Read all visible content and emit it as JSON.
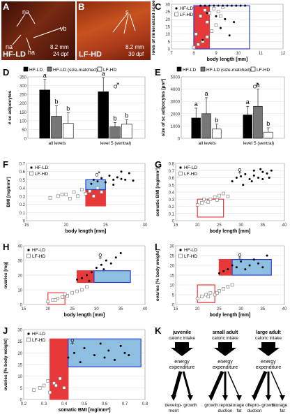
{
  "panels": {
    "A": {
      "letter": "A",
      "caption": "HF-LD",
      "labels": [
        "na",
        "na",
        "vb",
        "ha"
      ],
      "scale": "8.2 mm",
      "age": "24 dpf",
      "bg": "#6a2010"
    },
    "B": {
      "letter": "B",
      "caption": "LF-HD",
      "labels": [
        "s"
      ],
      "scale": "8.2 mm",
      "age": "30 dpf",
      "bg": "#b6421a"
    },
    "C": {
      "letter": "C"
    },
    "D": {
      "letter": "D",
      "symbol": "♂"
    },
    "E": {
      "letter": "E",
      "symbol": "♂"
    },
    "F": {
      "letter": "F",
      "symbol": "♂"
    },
    "G": {
      "letter": "G",
      "symbol": "♀"
    },
    "H": {
      "letter": "H",
      "symbol": "♀"
    },
    "I": {
      "letter": "I",
      "symbol": "♀"
    },
    "J": {
      "letter": "J",
      "symbol": "♀"
    },
    "K": {
      "letter": "K"
    }
  },
  "legend": {
    "hfld": "HF-LD",
    "lfhd": "LF-HD",
    "hfld_size": "HF-LD (size-matched)"
  },
  "colors": {
    "red": "#e8393a",
    "blue": "#2b3fd6",
    "lightblue": "#8fbfe0",
    "darkbar": "#000000",
    "midbar": "#777777"
  },
  "chart_data": [
    {
      "panel": "C",
      "type": "scatter",
      "xlabel": "body length [mm]",
      "ylabel": "rows of mineralized scales",
      "xlim": [
        7,
        12
      ],
      "ylim": [
        0,
        30
      ],
      "xticks": [
        "7",
        "8",
        "9",
        "10",
        "11",
        "12"
      ],
      "yticks": [
        "0",
        "5",
        "10",
        "15",
        "20",
        "25",
        "30"
      ],
      "series": [
        {
          "name": "HF-LD",
          "x": [
            8.3,
            8.5,
            8.7,
            8.9,
            9.1,
            9.3,
            9.5,
            9.7,
            9.9,
            10.1,
            10.3,
            9.0,
            9.4,
            9.8,
            8.6,
            9.2,
            8.4,
            9.6
          ],
          "y": [
            29,
            29,
            29,
            29,
            29,
            29,
            29,
            29,
            29,
            29,
            29,
            22,
            20,
            18,
            24,
            14,
            6,
            9
          ]
        },
        {
          "name": "LF-HD",
          "x": [
            8.0,
            8.2,
            8.4,
            8.6,
            8.8,
            9.0,
            9.2,
            8.3,
            8.7,
            9.1,
            8.5,
            8.9,
            9.3,
            8.1,
            8.6
          ],
          "y": [
            1,
            3,
            5,
            8,
            12,
            16,
            22,
            22,
            24,
            25,
            26,
            27,
            28,
            10,
            18
          ]
        }
      ]
    },
    {
      "panel": "D",
      "type": "bar",
      "ylabel": "# sc adipocytes",
      "ylim": [
        0,
        350
      ],
      "yticks": [
        "0",
        "50",
        "100",
        "150",
        "200",
        "250",
        "300",
        "350"
      ],
      "categories": [
        "all levels",
        "level 5 (ventral)"
      ],
      "series": [
        {
          "name": "HF-LD",
          "values": [
            275,
            265
          ],
          "err": [
            60,
            80
          ]
        },
        {
          "name": "HF-LD (size-matched)",
          "values": [
            125,
            65
          ],
          "err": [
            60,
            25
          ]
        },
        {
          "name": "LF-HD",
          "values": [
            85,
            80
          ],
          "err": [
            60,
            25
          ]
        }
      ],
      "letters": [
        [
          "a",
          "b",
          "b"
        ],
        [
          "a",
          "b",
          "b"
        ]
      ]
    },
    {
      "panel": "E",
      "type": "bar",
      "ylabel": "size of sc adipocytes [µm²]",
      "ylim": [
        0,
        5000
      ],
      "yticks": [
        "0",
        "1000",
        "2000",
        "3000",
        "4000",
        "5000"
      ],
      "categories": [
        "all levels",
        "level 5 (ventral)"
      ],
      "series": [
        {
          "name": "HF-LD",
          "values": [
            1650,
            1900
          ],
          "err": [
            800,
            700
          ]
        },
        {
          "name": "HF-LD (size-matched)",
          "values": [
            2000,
            2600
          ],
          "err": [
            1300,
            1400
          ]
        },
        {
          "name": "LF-HD",
          "values": [
            750,
            500
          ],
          "err": [
            400,
            350
          ]
        }
      ],
      "letters": [
        [
          "a",
          "a",
          "b"
        ],
        [
          "a",
          "a",
          "b"
        ]
      ]
    },
    {
      "panel": "F",
      "type": "scatter",
      "xlabel": "body length [mm]",
      "ylabel": "BMI [mg/mm²]",
      "xlim": [
        15,
        30
      ],
      "ylim": [
        0,
        0.7
      ],
      "xticks": [
        "15",
        "20",
        "25",
        "30"
      ],
      "yticks": [
        "0",
        "0.1",
        "0.2",
        "0.3",
        "0.4",
        "0.5",
        "0.6",
        "0.7"
      ],
      "series": [
        {
          "name": "HF-LD",
          "x": [
            23.2,
            23.5,
            24,
            24.5,
            25,
            25.5,
            26,
            26.5,
            27,
            27.5,
            28,
            28.5,
            26,
            27
          ],
          "y": [
            0.45,
            0.5,
            0.48,
            0.52,
            0.47,
            0.55,
            0.5,
            0.53,
            0.6,
            0.5,
            0.58,
            0.49,
            0.44,
            0.51
          ]
        },
        {
          "name": "LF-HD",
          "x": [
            18,
            19,
            20,
            21,
            21.5,
            22,
            22.5,
            23,
            23.5,
            24,
            24.5,
            20.5,
            19.5
          ],
          "y": [
            0.28,
            0.3,
            0.32,
            0.35,
            0.3,
            0.38,
            0.33,
            0.36,
            0.3,
            0.4,
            0.35,
            0.27,
            0.32
          ]
        }
      ]
    },
    {
      "panel": "G",
      "type": "scatter",
      "xlabel": "body length [mm]",
      "ylabel": "somatic BMI [mg/mm²]",
      "xlim": [
        15,
        40
      ],
      "ylim": [
        0,
        0.8
      ],
      "xticks": [
        "15",
        "20",
        "25",
        "30",
        "35",
        "40"
      ],
      "yticks": [
        "0",
        "0.1",
        "0.2",
        "0.3",
        "0.4",
        "0.5",
        "0.6",
        "0.7",
        "0.8"
      ],
      "series": [
        {
          "name": "HF-LD",
          "x": [
            28,
            29,
            30,
            31,
            32,
            33,
            34,
            35,
            36,
            37,
            30.5,
            32.5,
            34.5,
            36.5,
            33,
            35
          ],
          "y": [
            0.55,
            0.6,
            0.62,
            0.65,
            0.58,
            0.7,
            0.6,
            0.68,
            0.66,
            0.7,
            0.5,
            0.55,
            0.72,
            0.6,
            0.63,
            0.58
          ]
        },
        {
          "name": "LF-HD",
          "x": [
            20,
            21,
            22,
            23,
            24,
            25,
            26,
            27,
            22.5,
            21.5,
            24.5
          ],
          "y": [
            0.22,
            0.25,
            0.28,
            0.3,
            0.33,
            0.35,
            0.38,
            0.34,
            0.26,
            0.3,
            0.29
          ]
        }
      ]
    },
    {
      "panel": "H",
      "type": "scatter",
      "xlabel": "body length [mm]",
      "ylabel": "ovaries [mg]",
      "xlim": [
        15,
        40
      ],
      "ylim": [
        0,
        40
      ],
      "xticks": [
        "15",
        "20",
        "25",
        "30",
        "35",
        "40"
      ],
      "yticks": [
        "0",
        "10",
        "20",
        "30",
        "40"
      ],
      "series": [
        {
          "name": "HF-LD",
          "x": [
            26,
            27,
            28,
            29,
            30,
            31,
            32,
            33,
            34,
            35,
            28.5,
            31.5
          ],
          "y": [
            17,
            18,
            20,
            22,
            25,
            27,
            30,
            28,
            32,
            35,
            16,
            24
          ]
        },
        {
          "name": "LF-HD",
          "x": [
            20,
            21,
            22,
            23,
            24,
            25,
            26,
            27,
            28,
            21.5,
            23.5
          ],
          "y": [
            2,
            3,
            4,
            5,
            6,
            8,
            9,
            10,
            12,
            3,
            7
          ]
        }
      ]
    },
    {
      "panel": "I",
      "type": "scatter",
      "xlabel": "body length [mm]",
      "ylabel": "ovaries [% body weight]",
      "xlim": [
        15,
        40
      ],
      "ylim": [
        0,
        30
      ],
      "xticks": [
        "15",
        "20",
        "25",
        "30",
        "35",
        "40"
      ],
      "yticks": [
        "0",
        "5",
        "10",
        "15",
        "20",
        "25",
        "30"
      ],
      "series": [
        {
          "name": "HF-LD",
          "x": [
            25,
            26,
            27,
            28,
            29,
            30,
            31,
            32,
            33,
            34,
            35,
            36
          ],
          "y": [
            16,
            17,
            18,
            20,
            19,
            22,
            18,
            20,
            23,
            21,
            19,
            25
          ]
        },
        {
          "name": "LF-HD",
          "x": [
            20,
            21,
            22,
            23,
            24,
            25,
            26,
            27,
            28,
            22.5,
            24.5
          ],
          "y": [
            3,
            4,
            5,
            6,
            5,
            7,
            8,
            9,
            10,
            4,
            6
          ]
        }
      ]
    },
    {
      "panel": "J",
      "type": "scatter",
      "xlabel": "somatic BMI [mg/mm²]",
      "ylabel": "ovaries [% body weight]",
      "xlim": [
        0.2,
        0.8
      ],
      "ylim": [
        0,
        30
      ],
      "xticks": [
        "0.2",
        "0.3",
        "0.4",
        "0.5",
        "0.6",
        "0.7",
        "0.8"
      ],
      "yticks": [
        "0",
        "5",
        "10",
        "15",
        "20",
        "25",
        "30"
      ],
      "series": [
        {
          "name": "HF-LD",
          "x": [
            0.42,
            0.45,
            0.48,
            0.5,
            0.55,
            0.58,
            0.6,
            0.62,
            0.65,
            0.68,
            0.7,
            0.72
          ],
          "y": [
            18,
            20,
            16,
            22,
            19,
            24,
            18,
            21,
            17,
            23,
            20,
            19
          ]
        },
        {
          "name": "LF-HD",
          "x": [
            0.25,
            0.28,
            0.3,
            0.32,
            0.35,
            0.38,
            0.4,
            0.33,
            0.36
          ],
          "y": [
            4,
            5,
            6,
            8,
            7,
            9,
            5,
            3,
            6
          ]
        }
      ]
    }
  ],
  "panelK": {
    "stages": [
      {
        "title": "juvenile",
        "sub": "caloric intake",
        "mid": "energy expenditure",
        "outs": [
          "develop-ment",
          "growth"
        ]
      },
      {
        "title": "small adult",
        "sub": "caloric intake",
        "mid": "energy expenditure",
        "outs": [
          "growth",
          "repro-duction",
          "storage of fat"
        ]
      },
      {
        "title": "large adult",
        "sub": "caloric intake",
        "mid": "energy expenditure",
        "outs": [
          "repro-duction",
          "growth",
          "storage of fat"
        ]
      }
    ]
  }
}
